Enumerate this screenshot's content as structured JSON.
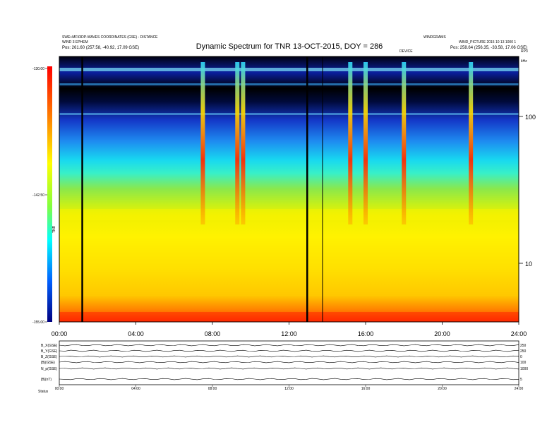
{
  "chart_data": {
    "type": "heatmap",
    "title": "Dynamic Spectrum for TNR 13-OCT-2015, DOY = 286",
    "header_left": {
      "line1": "SWE+MFI/3DP-WAVES COORDINATES (GSE) - DISTANCE",
      "line2": "WIND 3 EPHEM",
      "line3": "Pos:   261.60 (257.58, -40.92, 17.09 GSE)"
    },
    "header_right": {
      "line1": "WINDGRAMS",
      "line2": "WIND_PICTURE 2015 10 13 1000 1",
      "line3": "Pos:   258.64 (256.35, -33.58, 17.06 GSE)",
      "marker": "RP3"
    },
    "colorbar": {
      "label": "TNR",
      "ticks": [
        "-130.00",
        "-142.50",
        "-155.00"
      ],
      "min": -155.0,
      "max": -130.0
    },
    "y_axis": {
      "ticks": [
        "100",
        "10"
      ],
      "scale": "log",
      "unit_label": "kHz"
    },
    "x_axis": {
      "ticks": [
        "00:00",
        "04:00",
        "08:00",
        "12:00",
        "16:00",
        "20:00",
        "24:00"
      ],
      "range": [
        0,
        24
      ]
    },
    "data_gap_lines_hours": [
      1.2,
      12.95
    ],
    "thin_marker_hours": [
      13.75
    ],
    "top_label": "DEVICE",
    "type_iii_bursts_hours": [
      7.5,
      9.3,
      9.6,
      15.2,
      16.0,
      18.0,
      21.5
    ],
    "bottom_panels": {
      "left_labels": [
        "B_X(GSE)",
        "B_Y(GSE)",
        "B_Z(GSE)",
        "|B|(GSE)",
        "N_p(GSE)",
        "|B|(nT)"
      ],
      "right_labels": [
        "250",
        "250",
        "0",
        "100",
        "1000",
        "5"
      ],
      "axis_ticks": [
        "00:00",
        "04:00",
        "08:00",
        "12:00",
        "16:00",
        "20:00",
        "24:00"
      ],
      "footer": "Status"
    }
  }
}
